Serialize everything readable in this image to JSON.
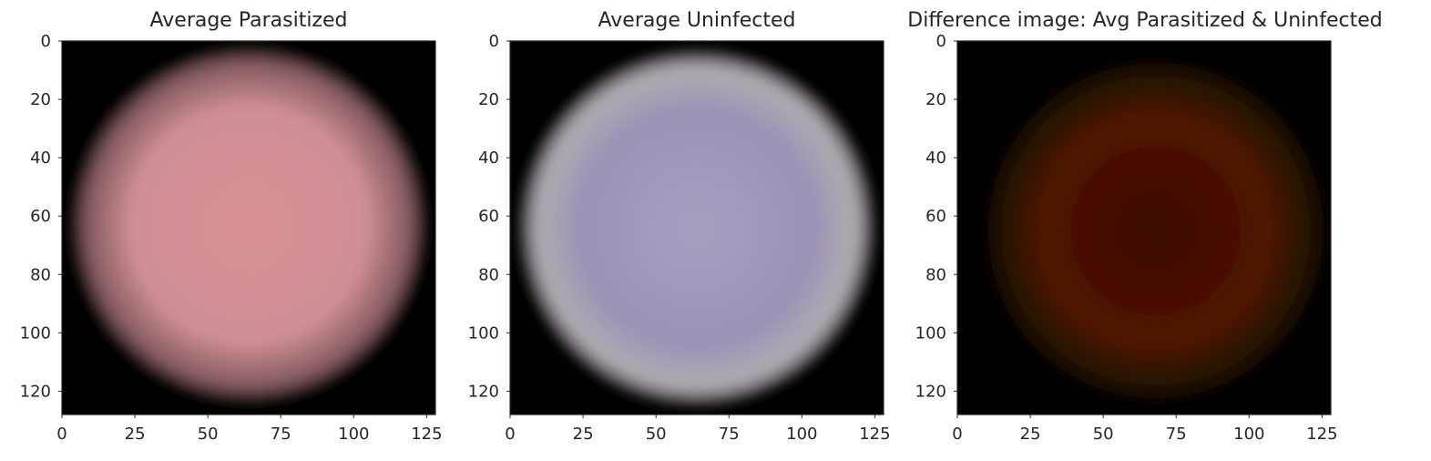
{
  "chart_data": [
    {
      "type": "heatmap",
      "title": "Average Parasitized",
      "xlabel": "",
      "ylabel": "",
      "xlim": [
        0,
        128
      ],
      "ylim": [
        128,
        0
      ],
      "xticks": [
        0,
        25,
        50,
        75,
        100,
        125
      ],
      "yticks": [
        0,
        20,
        40,
        60,
        80,
        100,
        120
      ],
      "grid": false,
      "image": {
        "shape": "disc",
        "center": [
          64,
          63
        ],
        "radius": 62,
        "background_color": "#000000",
        "inner_color": "#d99199",
        "mid_color": "#cf8e95",
        "edge_color": "#a06e73"
      }
    },
    {
      "type": "heatmap",
      "title": "Average Uninfected",
      "xlabel": "",
      "ylabel": "",
      "xlim": [
        0,
        128
      ],
      "ylim": [
        128,
        0
      ],
      "xticks": [
        0,
        25,
        50,
        75,
        100,
        125
      ],
      "yticks": [
        0,
        20,
        40,
        60,
        80,
        100,
        120
      ],
      "grid": false,
      "image": {
        "shape": "disc",
        "center": [
          64,
          64
        ],
        "radius": 62,
        "background_color": "#000000",
        "inner_color": "#a8a0c0",
        "mid_color": "#9c91b5",
        "edge_color": "#cfc8cf"
      }
    },
    {
      "type": "heatmap",
      "title": "Difference image: Avg Parasitized & Uninfected",
      "xlabel": "",
      "ylabel": "",
      "xlim": [
        0,
        128
      ],
      "ylim": [
        128,
        0
      ],
      "xticks": [
        0,
        25,
        50,
        75,
        100,
        125
      ],
      "yticks": [
        0,
        20,
        40,
        60,
        80,
        100,
        120
      ],
      "grid": false,
      "image": {
        "shape": "disc",
        "center": [
          68,
          65
        ],
        "radius": 60,
        "background_color": "#000000",
        "inner_color": "#3c0703",
        "mid_color": "#501504",
        "edge_color": "#2a1408"
      }
    }
  ]
}
